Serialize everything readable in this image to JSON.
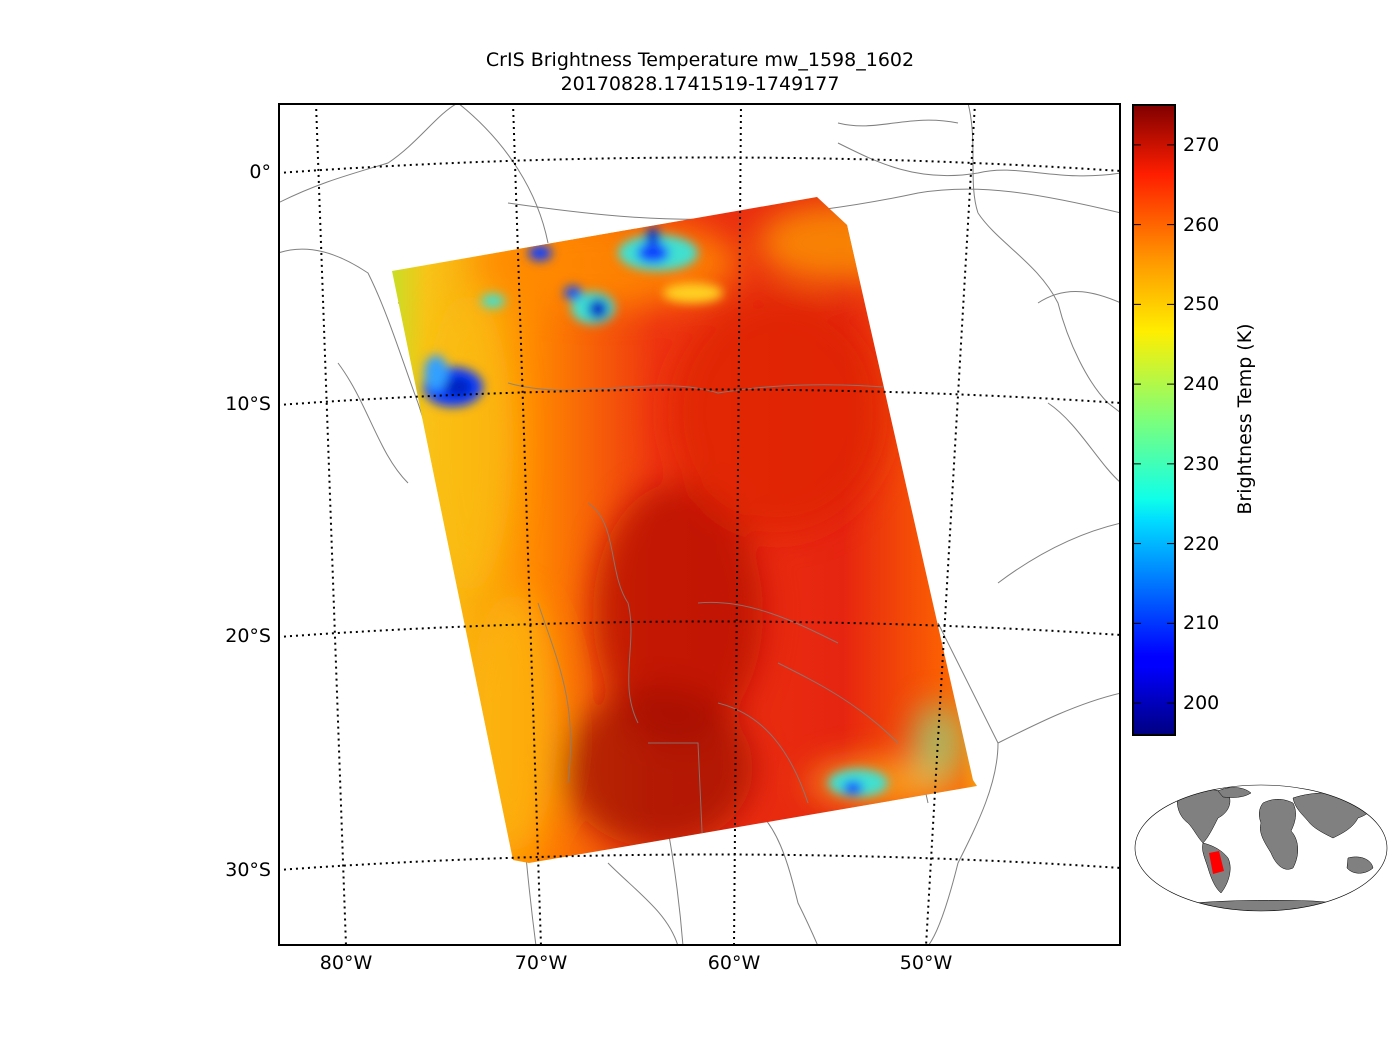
{
  "title": {
    "line1": "CrIS Brightness Temperature mw_1598_1602",
    "line2": "20170828.1741519-1749177"
  },
  "map": {
    "lat_labels": [
      "0°",
      "10°S",
      "20°S",
      "30°S"
    ],
    "lon_labels": [
      "80°W",
      "70°W",
      "60°W",
      "50°W"
    ],
    "gridline_style": "dotted"
  },
  "colorbar": {
    "label": "Brightness Temp (K)",
    "ticks": [
      "200",
      "210",
      "220",
      "230",
      "240",
      "250",
      "260",
      "270"
    ],
    "range": [
      196,
      275
    ],
    "colormap": "jet"
  },
  "inset": {
    "name": "global locator map",
    "swath_color": "#ff0000",
    "land_color": "#808080"
  },
  "colors": {
    "coastline": "#808080",
    "grid": "#000000"
  }
}
